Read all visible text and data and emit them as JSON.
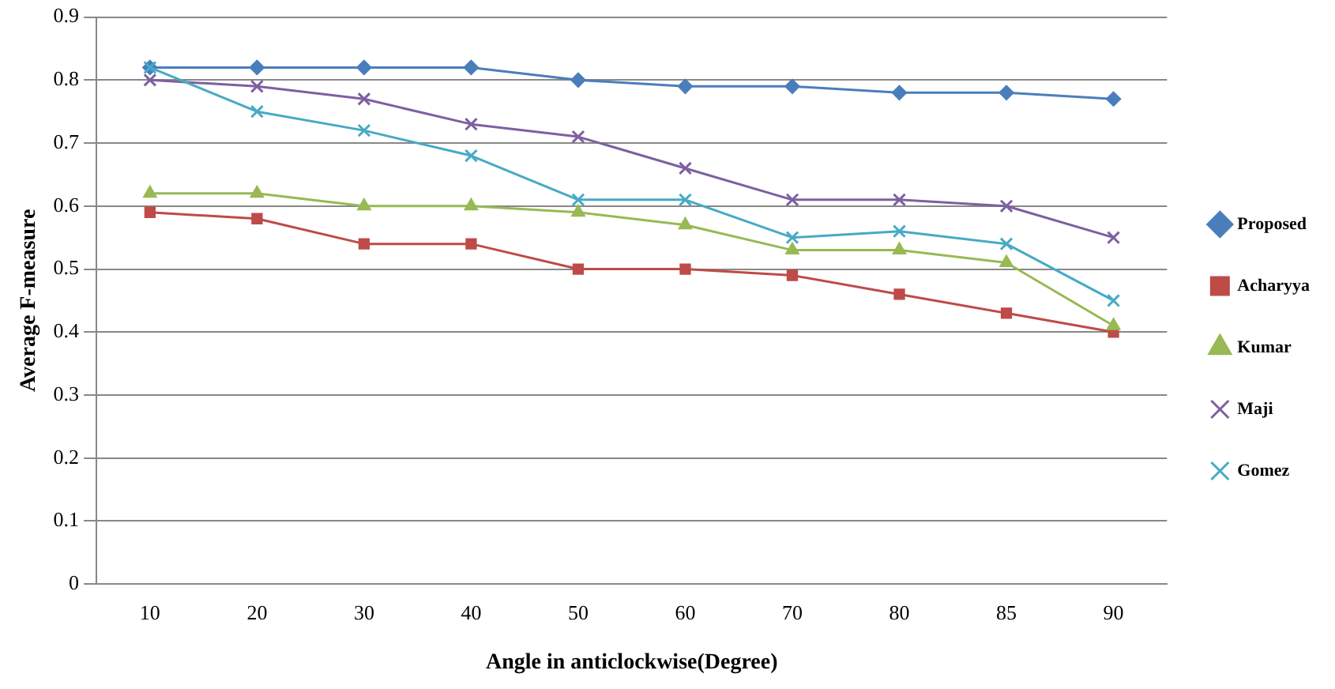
{
  "chart_data": {
    "type": "line",
    "xlabel": "Angle in anticlockwise(Degree)",
    "ylabel": "Average F-measure",
    "categories": [
      "10",
      "20",
      "30",
      "40",
      "50",
      "60",
      "70",
      "80",
      "85",
      "90"
    ],
    "ylim": [
      0,
      0.9
    ],
    "yticks": [
      0,
      0.1,
      0.2,
      0.3,
      0.4,
      0.5,
      0.6,
      0.7,
      0.8,
      0.9
    ],
    "grid": "y",
    "legend": "right",
    "series": [
      {
        "name": "Proposed",
        "color": "#4a7ebb",
        "marker": "diamond",
        "values": [
          0.82,
          0.82,
          0.82,
          0.82,
          0.8,
          0.79,
          0.79,
          0.78,
          0.78,
          0.77
        ]
      },
      {
        "name": "Acharyya",
        "color": "#be4b48",
        "marker": "square",
        "values": [
          0.59,
          0.58,
          0.54,
          0.54,
          0.5,
          0.5,
          0.49,
          0.46,
          0.43,
          0.4
        ]
      },
      {
        "name": "Kumar",
        "color": "#98b954",
        "marker": "triangle",
        "values": [
          0.62,
          0.62,
          0.6,
          0.6,
          0.59,
          0.57,
          0.53,
          0.53,
          0.51,
          0.41
        ]
      },
      {
        "name": "Maji",
        "color": "#7d60a0",
        "marker": "cross",
        "values": [
          0.8,
          0.79,
          0.77,
          0.73,
          0.71,
          0.66,
          0.61,
          0.61,
          0.6,
          0.55
        ]
      },
      {
        "name": "Gomez",
        "color": "#46aac5",
        "marker": "cross",
        "values": [
          0.82,
          0.75,
          0.72,
          0.68,
          0.61,
          0.61,
          0.55,
          0.56,
          0.54,
          0.45
        ]
      }
    ]
  }
}
